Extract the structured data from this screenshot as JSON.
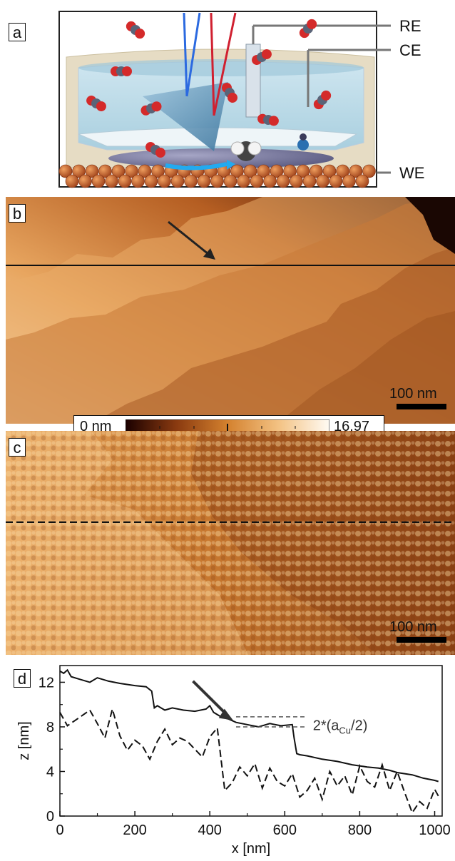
{
  "panel_a": {
    "letter": "a",
    "labels": {
      "re": "RE",
      "ce": "CE",
      "we": "WE"
    }
  },
  "panel_b": {
    "letter": "b",
    "scale_bar": "100 nm"
  },
  "colorbar": {
    "min_label": "0 nm",
    "max_label": "16.97"
  },
  "panel_c": {
    "letter": "c",
    "scale_bar": "100 nm"
  },
  "panel_d": {
    "letter": "d",
    "annotation_prefix": "2*(a",
    "annotation_sub": "Cu",
    "annotation_suffix": "/2)"
  },
  "chart_data": {
    "type": "line",
    "xlabel": "x [nm]",
    "ylabel": "z [nm]",
    "xlim": [
      0,
      1020
    ],
    "ylim": [
      0,
      13.5
    ],
    "x_ticks": [
      0,
      200,
      400,
      600,
      800,
      1000
    ],
    "y_ticks": [
      0,
      4,
      8,
      12
    ],
    "series": [
      {
        "style": "solid",
        "x": [
          0,
          10,
          20,
          30,
          50,
          80,
          100,
          130,
          160,
          200,
          230,
          245,
          252,
          260,
          280,
          300,
          330,
          360,
          390,
          400,
          410,
          430,
          450,
          470,
          500,
          530,
          560,
          590,
          620,
          625,
          632,
          640,
          660,
          700,
          740,
          780,
          820,
          850,
          880,
          900,
          940,
          970,
          1000,
          1010
        ],
        "y": [
          13.0,
          12.8,
          13.1,
          12.5,
          12.3,
          12.0,
          12.4,
          12.1,
          11.9,
          11.7,
          11.6,
          11.2,
          9.7,
          9.9,
          9.5,
          9.7,
          9.5,
          9.4,
          9.6,
          9.9,
          9.3,
          8.9,
          8.7,
          8.4,
          8.2,
          8.0,
          8.3,
          8.1,
          8.2,
          7.0,
          5.6,
          5.5,
          5.4,
          5.1,
          4.9,
          4.6,
          4.4,
          4.3,
          4.1,
          3.9,
          3.7,
          3.4,
          3.2,
          3.1
        ]
      },
      {
        "style": "dashed",
        "x": [
          0,
          20,
          50,
          80,
          100,
          120,
          140,
          160,
          180,
          200,
          220,
          240,
          260,
          280,
          300,
          320,
          340,
          380,
          400,
          420,
          440,
          460,
          480,
          500,
          520,
          540,
          560,
          580,
          600,
          620,
          640,
          660,
          680,
          700,
          720,
          740,
          760,
          780,
          800,
          820,
          840,
          860,
          880,
          900,
          920,
          940,
          960,
          980,
          1000,
          1010
        ],
        "y": [
          9.3,
          8.1,
          8.8,
          9.5,
          8.3,
          7.0,
          9.6,
          7.2,
          5.9,
          6.8,
          6.3,
          5.1,
          6.7,
          7.8,
          6.4,
          7.0,
          6.7,
          5.3,
          7.1,
          7.9,
          2.3,
          3.0,
          4.4,
          3.6,
          4.7,
          2.5,
          4.3,
          3.1,
          2.7,
          3.8,
          1.7,
          2.3,
          3.4,
          1.5,
          4.0,
          2.7,
          3.6,
          1.9,
          4.5,
          3.1,
          2.6,
          4.6,
          2.3,
          4.0,
          2.1,
          0.3,
          1.3,
          0.7,
          2.4,
          1.8
        ]
      }
    ]
  }
}
